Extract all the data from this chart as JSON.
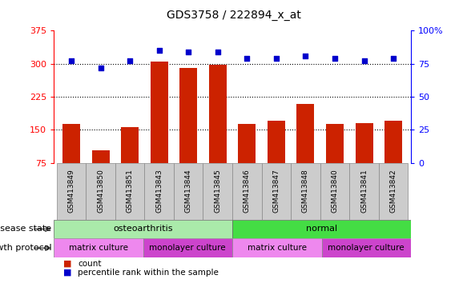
{
  "title": "GDS3758 / 222894_x_at",
  "samples": [
    "GSM413849",
    "GSM413850",
    "GSM413851",
    "GSM413843",
    "GSM413844",
    "GSM413845",
    "GSM413846",
    "GSM413847",
    "GSM413848",
    "GSM413840",
    "GSM413841",
    "GSM413842"
  ],
  "counts": [
    163,
    103,
    155,
    305,
    290,
    298,
    163,
    170,
    208,
    163,
    165,
    170
  ],
  "percentile": [
    77,
    72,
    77,
    85,
    84,
    84,
    79,
    79,
    81,
    79,
    77,
    79
  ],
  "ylim_left": [
    75,
    375
  ],
  "ylim_right": [
    0,
    100
  ],
  "yticks_left": [
    75,
    150,
    225,
    300,
    375
  ],
  "yticks_right": [
    0,
    25,
    50,
    75,
    100
  ],
  "bar_color": "#CC2200",
  "dot_color": "#0000CC",
  "sample_bg_color": "#CCCCCC",
  "osteoarthritis_color": "#AAEAAA",
  "normal_color": "#44DD44",
  "matrix_culture_color": "#EE88EE",
  "monolayer_culture_color": "#CC44CC",
  "disease_groups": [
    {
      "label": "osteoarthritis",
      "start": 0,
      "end": 6,
      "color": "#AAEAAA"
    },
    {
      "label": "normal",
      "start": 6,
      "end": 12,
      "color": "#44DD44"
    }
  ],
  "growth_groups": [
    {
      "label": "matrix culture",
      "start": 0,
      "end": 3,
      "color": "#EE88EE"
    },
    {
      "label": "monolayer culture",
      "start": 3,
      "end": 6,
      "color": "#CC44CC"
    },
    {
      "label": "matrix culture",
      "start": 6,
      "end": 9,
      "color": "#EE88EE"
    },
    {
      "label": "monolayer culture",
      "start": 9,
      "end": 12,
      "color": "#CC44CC"
    }
  ]
}
